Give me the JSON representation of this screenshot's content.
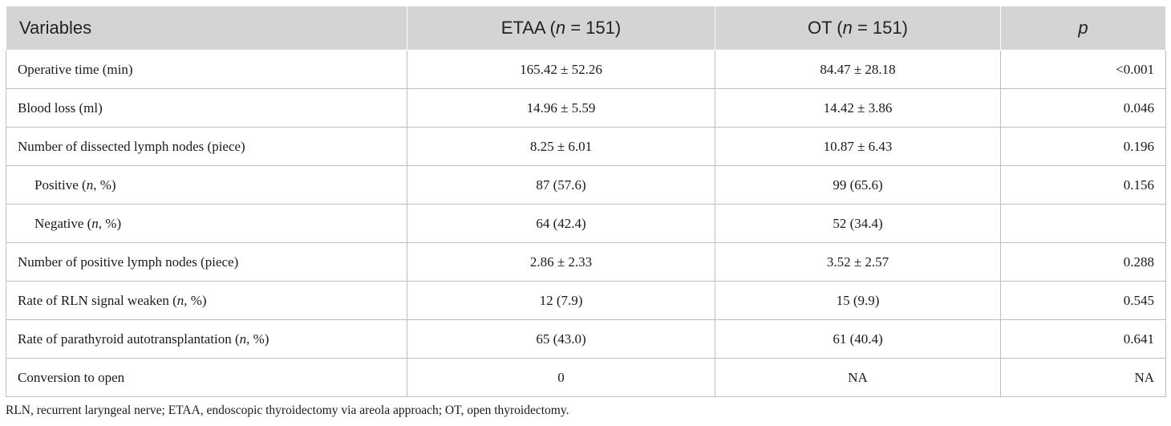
{
  "table": {
    "headers": {
      "variables": "Variables",
      "etaa_prefix": "ETAA (",
      "etaa_n": "n",
      "etaa_suffix": " = 151)",
      "ot_prefix": "OT (",
      "ot_n": "n",
      "ot_suffix": " = 151)",
      "p": "p"
    },
    "rows": [
      {
        "label": "Operative time (min)",
        "etaa": "165.42 ± 52.26",
        "ot": "84.47 ± 28.18",
        "p": "<0.001"
      },
      {
        "label": "Blood loss (ml)",
        "etaa": "14.96 ± 5.59",
        "ot": "14.42 ± 3.86",
        "p": "0.046"
      },
      {
        "label": "Number of dissected lymph nodes (piece)",
        "etaa": "8.25 ± 6.01",
        "ot": "10.87 ± 6.43",
        "p": "0.196"
      },
      {
        "label_pre": "Positive (",
        "label_n": "n",
        "label_post": ", %)",
        "etaa": "87 (57.6)",
        "ot": "99 (65.6)",
        "p": "0.156"
      },
      {
        "label_pre": "Negative (",
        "label_n": "n",
        "label_post": ", %)",
        "etaa": "64 (42.4)",
        "ot": "52 (34.4)",
        "p": ""
      },
      {
        "label": "Number of positive lymph nodes (piece)",
        "etaa": "2.86 ± 2.33",
        "ot": "3.52 ± 2.57",
        "p": "0.288"
      },
      {
        "label_pre": "Rate of RLN signal weaken (",
        "label_n": "n",
        "label_post": ", %)",
        "etaa": "12 (7.9)",
        "ot": "15 (9.9)",
        "p": "0.545"
      },
      {
        "label_pre": "Rate of parathyroid autotransplantation (",
        "label_n": "n",
        "label_post": ", %)",
        "etaa": "65 (43.0)",
        "ot": "61 (40.4)",
        "p": "0.641"
      },
      {
        "label": "Conversion to open",
        "etaa": "0",
        "ot": "NA",
        "p": "NA"
      }
    ]
  },
  "footnote": "RLN, recurrent laryngeal nerve; ETAA, endoscopic thyroidectomy via areola approach; OT, open thyroidectomy.",
  "colors": {
    "header_bg": "#d4d4d4",
    "grid": "#bdbdbd"
  }
}
